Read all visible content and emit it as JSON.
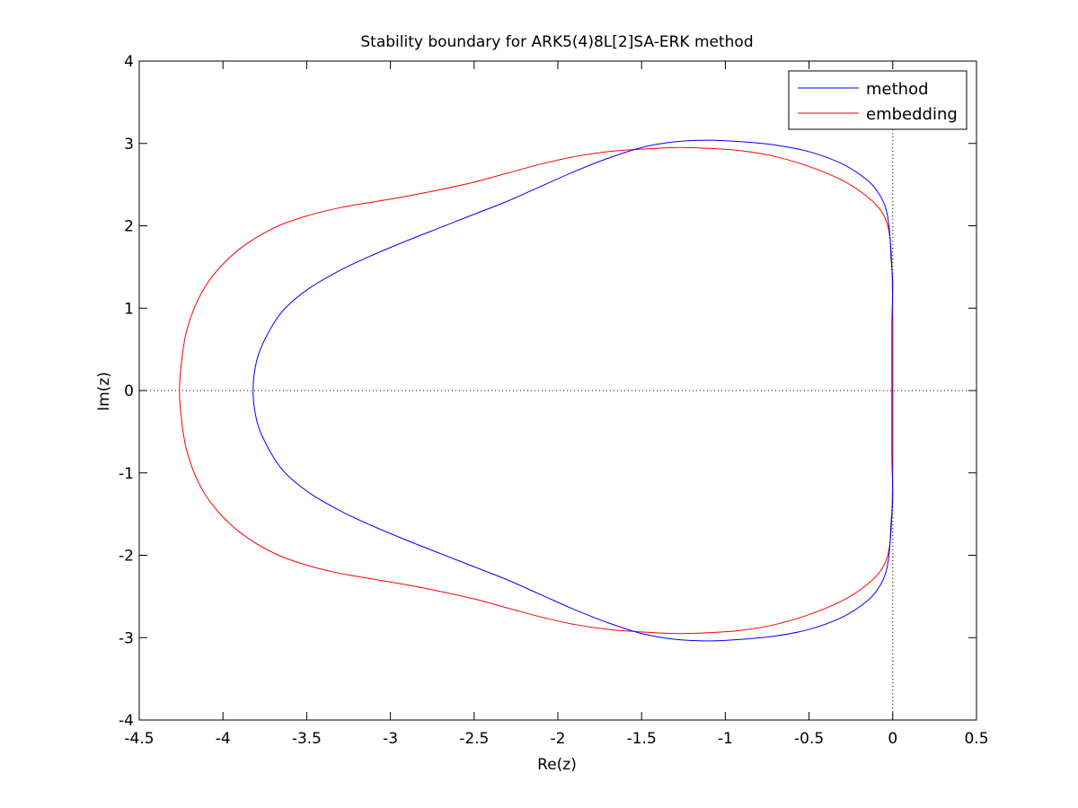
{
  "chart_data": {
    "type": "line",
    "title": "Stability boundary for ARK5(4)8L[2]SA-ERK method",
    "xlabel": "Re(z)",
    "ylabel": "Im(z)",
    "xlim": [
      -4.5,
      0.5
    ],
    "ylim": [
      -4,
      4
    ],
    "xticks": [
      -4.5,
      -4,
      -3.5,
      -3,
      -2.5,
      -2,
      -1.5,
      -1,
      -0.5,
      0,
      0.5
    ],
    "yticks": [
      -4,
      -3,
      -2,
      -1,
      0,
      1,
      2,
      3,
      4
    ],
    "xtick_labels": [
      "-4.5",
      "-4",
      "-3.5",
      "-3",
      "-2.5",
      "-2",
      "-1.5",
      "-1",
      "-0.5",
      "0",
      "0.5"
    ],
    "ytick_labels": [
      "-4",
      "-3",
      "-2",
      "-1",
      "0",
      "1",
      "2",
      "3",
      "4"
    ],
    "grid": false,
    "legend": "top-right",
    "reference_lines": [
      {
        "orientation": "horizontal",
        "value": 0,
        "style": "dotted"
      },
      {
        "orientation": "vertical",
        "value": 0,
        "style": "dotted"
      }
    ],
    "series": [
      {
        "name": "method",
        "color": "#0000ff",
        "closed": true,
        "points": [
          [
            0.0,
            1.28
          ],
          [
            -0.01,
            1.6
          ],
          [
            -0.02,
            1.95
          ],
          [
            -0.04,
            2.2
          ],
          [
            -0.08,
            2.38
          ],
          [
            -0.15,
            2.55
          ],
          [
            -0.3,
            2.75
          ],
          [
            -0.5,
            2.9
          ],
          [
            -0.7,
            2.98
          ],
          [
            -0.9,
            3.02
          ],
          [
            -1.1,
            3.04
          ],
          [
            -1.3,
            3.02
          ],
          [
            -1.5,
            2.95
          ],
          [
            -1.7,
            2.82
          ],
          [
            -1.9,
            2.66
          ],
          [
            -2.1,
            2.48
          ],
          [
            -2.3,
            2.3
          ],
          [
            -2.5,
            2.14
          ],
          [
            -2.7,
            1.98
          ],
          [
            -2.9,
            1.82
          ],
          [
            -3.1,
            1.65
          ],
          [
            -3.3,
            1.46
          ],
          [
            -3.5,
            1.22
          ],
          [
            -3.65,
            0.95
          ],
          [
            -3.75,
            0.62
          ],
          [
            -3.8,
            0.35
          ],
          [
            -3.82,
            0.0
          ],
          [
            -3.8,
            -0.35
          ],
          [
            -3.75,
            -0.62
          ],
          [
            -3.65,
            -0.95
          ],
          [
            -3.5,
            -1.22
          ],
          [
            -3.3,
            -1.46
          ],
          [
            -3.1,
            -1.65
          ],
          [
            -2.9,
            -1.82
          ],
          [
            -2.7,
            -1.98
          ],
          [
            -2.5,
            -2.14
          ],
          [
            -2.3,
            -2.3
          ],
          [
            -2.1,
            -2.48
          ],
          [
            -1.9,
            -2.66
          ],
          [
            -1.7,
            -2.82
          ],
          [
            -1.5,
            -2.95
          ],
          [
            -1.3,
            -3.02
          ],
          [
            -1.1,
            -3.04
          ],
          [
            -0.9,
            -3.02
          ],
          [
            -0.7,
            -2.98
          ],
          [
            -0.5,
            -2.9
          ],
          [
            -0.3,
            -2.75
          ],
          [
            -0.15,
            -2.55
          ],
          [
            -0.08,
            -2.38
          ],
          [
            -0.04,
            -2.2
          ],
          [
            -0.02,
            -1.95
          ],
          [
            -0.01,
            -1.6
          ],
          [
            0.0,
            -1.28
          ],
          [
            -0.005,
            -0.8
          ],
          [
            -0.005,
            0.0
          ],
          [
            -0.005,
            0.8
          ],
          [
            0.0,
            1.28
          ]
        ]
      },
      {
        "name": "embedding",
        "color": "#ff0000",
        "closed": true,
        "points": [
          [
            0.0,
            0.0
          ],
          [
            0.0,
            0.8
          ],
          [
            -0.005,
            1.5
          ],
          [
            -0.02,
            1.9
          ],
          [
            -0.06,
            2.15
          ],
          [
            -0.15,
            2.35
          ],
          [
            -0.3,
            2.55
          ],
          [
            -0.5,
            2.72
          ],
          [
            -0.7,
            2.84
          ],
          [
            -0.9,
            2.91
          ],
          [
            -1.1,
            2.94
          ],
          [
            -1.3,
            2.95
          ],
          [
            -1.5,
            2.93
          ],
          [
            -1.7,
            2.9
          ],
          [
            -1.9,
            2.84
          ],
          [
            -2.1,
            2.75
          ],
          [
            -2.3,
            2.64
          ],
          [
            -2.5,
            2.53
          ],
          [
            -2.7,
            2.44
          ],
          [
            -2.9,
            2.36
          ],
          [
            -3.1,
            2.29
          ],
          [
            -3.3,
            2.22
          ],
          [
            -3.5,
            2.12
          ],
          [
            -3.7,
            1.97
          ],
          [
            -3.9,
            1.72
          ],
          [
            -4.05,
            1.42
          ],
          [
            -4.15,
            1.1
          ],
          [
            -4.22,
            0.7
          ],
          [
            -4.25,
            0.3
          ],
          [
            -4.26,
            0.0
          ],
          [
            -4.25,
            -0.3
          ],
          [
            -4.22,
            -0.7
          ],
          [
            -4.15,
            -1.1
          ],
          [
            -4.05,
            -1.42
          ],
          [
            -3.9,
            -1.72
          ],
          [
            -3.7,
            -1.97
          ],
          [
            -3.5,
            -2.12
          ],
          [
            -3.3,
            -2.22
          ],
          [
            -3.1,
            -2.29
          ],
          [
            -2.9,
            -2.36
          ],
          [
            -2.7,
            -2.44
          ],
          [
            -2.5,
            -2.53
          ],
          [
            -2.3,
            -2.64
          ],
          [
            -2.1,
            -2.75
          ],
          [
            -1.9,
            -2.84
          ],
          [
            -1.7,
            -2.9
          ],
          [
            -1.5,
            -2.93
          ],
          [
            -1.3,
            -2.95
          ],
          [
            -1.1,
            -2.94
          ],
          [
            -0.9,
            -2.91
          ],
          [
            -0.7,
            -2.84
          ],
          [
            -0.5,
            -2.72
          ],
          [
            -0.3,
            -2.55
          ],
          [
            -0.15,
            -2.35
          ],
          [
            -0.06,
            -2.15
          ],
          [
            -0.02,
            -1.9
          ],
          [
            -0.005,
            -1.5
          ],
          [
            0.0,
            -0.8
          ],
          [
            0.0,
            0.0
          ]
        ]
      }
    ]
  }
}
